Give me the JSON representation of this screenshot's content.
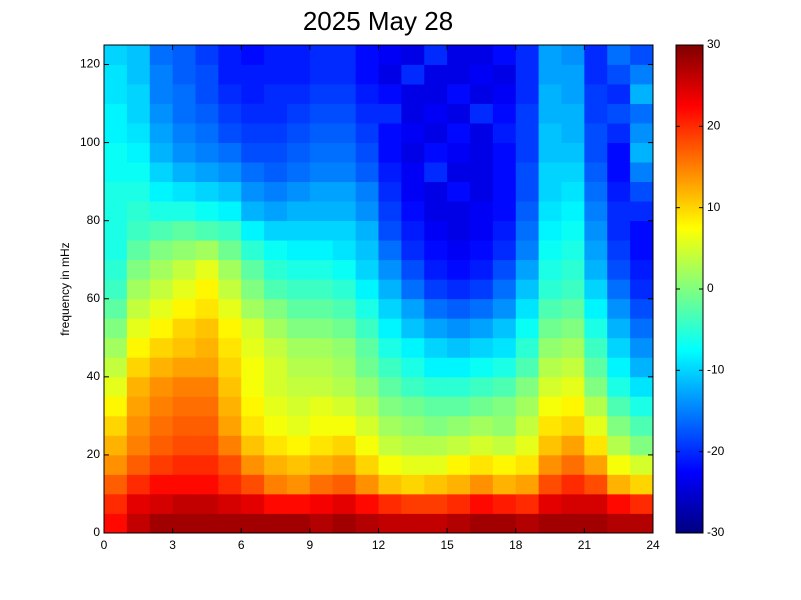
{
  "chart_data": {
    "type": "heatmap",
    "title": "2025 May 28",
    "ylabel": "frequency in mHz",
    "colormap": "jet",
    "xbins": [
      0,
      1,
      2,
      3,
      4,
      5,
      6,
      7,
      8,
      9,
      10,
      11,
      12,
      13,
      14,
      15,
      16,
      17,
      18,
      19,
      20,
      21,
      22,
      23,
      24
    ],
    "ybins": [
      0,
      5,
      10,
      15,
      20,
      25,
      30,
      35,
      40,
      45,
      50,
      55,
      60,
      65,
      70,
      75,
      80,
      85,
      90,
      95,
      100,
      105,
      110,
      115,
      120,
      125
    ],
    "xlim": [
      0,
      24
    ],
    "xticks": [
      0,
      3,
      6,
      9,
      12,
      15,
      18,
      21,
      24
    ],
    "ylim": [
      0,
      125
    ],
    "yticks": [
      0,
      20,
      40,
      60,
      80,
      100,
      120
    ],
    "clim": [
      -30,
      30
    ],
    "cticks": [
      -30,
      -20,
      -10,
      0,
      10,
      20,
      30
    ],
    "z": [
      [
        22,
        26,
        28,
        28,
        28,
        28,
        28,
        28,
        28,
        27,
        28,
        27,
        26,
        26,
        26,
        27,
        28,
        28,
        27,
        28,
        28,
        28,
        27,
        27
      ],
      [
        20,
        24,
        25,
        26,
        26,
        25,
        24,
        22,
        22,
        23,
        24,
        22,
        20,
        19,
        19,
        20,
        22,
        21,
        20,
        24,
        25,
        25,
        22,
        20
      ],
      [
        17,
        20,
        22,
        22,
        22,
        20,
        18,
        15,
        14,
        16,
        17,
        14,
        11,
        10,
        11,
        12,
        14,
        12,
        13,
        18,
        20,
        18,
        12,
        10
      ],
      [
        14,
        17,
        19,
        20,
        20,
        18,
        14,
        12,
        11,
        12,
        13,
        10,
        7,
        6,
        6,
        8,
        9,
        8,
        9,
        14,
        16,
        13,
        7,
        5
      ],
      [
        12,
        15,
        17,
        18,
        18,
        15,
        11,
        9,
        8,
        9,
        10,
        7,
        4,
        3,
        3,
        4,
        5,
        4,
        6,
        11,
        13,
        9,
        3,
        0
      ],
      [
        10,
        14,
        16,
        17,
        17,
        13,
        9,
        7,
        6,
        7,
        7,
        5,
        2,
        1,
        0,
        1,
        2,
        1,
        4,
        9,
        10,
        6,
        0,
        -3
      ],
      [
        8,
        13,
        15,
        16,
        16,
        12,
        8,
        6,
        5,
        6,
        5,
        3,
        0,
        -1,
        -2,
        -2,
        -1,
        0,
        2,
        7,
        8,
        3,
        -3,
        -6
      ],
      [
        6,
        12,
        14,
        15,
        15,
        11,
        7,
        5,
        4,
        4,
        3,
        1,
        -2,
        -4,
        -5,
        -5,
        -4,
        -3,
        0,
        5,
        6,
        0,
        -6,
        -9
      ],
      [
        4,
        10,
        12,
        13,
        13,
        10,
        7,
        5,
        3,
        3,
        2,
        -1,
        -4,
        -6,
        -8,
        -8,
        -7,
        -6,
        -3,
        3,
        4,
        -2,
        -8,
        -12
      ],
      [
        2,
        8,
        10,
        11,
        12,
        9,
        6,
        4,
        2,
        2,
        1,
        -2,
        -6,
        -8,
        -10,
        -11,
        -10,
        -9,
        -5,
        1,
        2,
        -4,
        -10,
        -14
      ],
      [
        0,
        6,
        8,
        10,
        11,
        8,
        5,
        2,
        0,
        0,
        -1,
        -4,
        -8,
        -11,
        -13,
        -14,
        -13,
        -11,
        -7,
        -1,
        0,
        -6,
        -12,
        -16
      ],
      [
        -2,
        4,
        6,
        8,
        9,
        6,
        2,
        0,
        -2,
        -2,
        -3,
        -6,
        -10,
        -13,
        -16,
        -17,
        -16,
        -14,
        -9,
        -3,
        -2,
        -8,
        -14,
        -18
      ],
      [
        -4,
        2,
        4,
        6,
        8,
        4,
        0,
        -3,
        -4,
        -4,
        -5,
        -8,
        -12,
        -16,
        -19,
        -20,
        -19,
        -16,
        -11,
        -5,
        -4,
        -10,
        -16,
        -20
      ],
      [
        -5,
        0,
        2,
        4,
        6,
        2,
        -2,
        -5,
        -6,
        -6,
        -7,
        -10,
        -14,
        -18,
        -21,
        -22,
        -21,
        -18,
        -13,
        -6,
        -5,
        -12,
        -18,
        -21
      ],
      [
        -6,
        -2,
        0,
        1,
        2,
        -1,
        -5,
        -7,
        -8,
        -8,
        -9,
        -11,
        -16,
        -20,
        -22,
        -23,
        -22,
        -20,
        -15,
        -7,
        -6,
        -13,
        -19,
        -22
      ],
      [
        -6,
        -4,
        -3,
        -2,
        -3,
        -4,
        -8,
        -10,
        -10,
        -10,
        -10,
        -12,
        -18,
        -21,
        -23,
        -24,
        -23,
        -21,
        -16,
        -8,
        -7,
        -14,
        -20,
        -22
      ],
      [
        -6,
        -5,
        -6,
        -6,
        -7,
        -8,
        -12,
        -13,
        -12,
        -12,
        -12,
        -14,
        -19,
        -22,
        -24,
        -24,
        -23,
        -22,
        -17,
        -9,
        -8,
        -15,
        -20,
        -20
      ],
      [
        -6,
        -6,
        -8,
        -9,
        -10,
        -11,
        -14,
        -15,
        -14,
        -13,
        -13,
        -15,
        -20,
        -23,
        -24,
        -22,
        -24,
        -22,
        -18,
        -10,
        -9,
        -16,
        -21,
        -18
      ],
      [
        -7,
        -7,
        -10,
        -12,
        -13,
        -14,
        -16,
        -17,
        -16,
        -15,
        -15,
        -17,
        -21,
        -23,
        -20,
        -24,
        -24,
        -22,
        -18,
        -10,
        -10,
        -17,
        -22,
        -15
      ],
      [
        -7,
        -8,
        -12,
        -14,
        -15,
        -16,
        -18,
        -18,
        -17,
        -16,
        -16,
        -18,
        -22,
        -24,
        -22,
        -23,
        -24,
        -22,
        -19,
        -11,
        -11,
        -18,
        -22,
        -12
      ],
      [
        -8,
        -9,
        -13,
        -15,
        -16,
        -18,
        -19,
        -19,
        -18,
        -17,
        -17,
        -19,
        -22,
        -23,
        -24,
        -22,
        -24,
        -21,
        -19,
        -11,
        -12,
        -18,
        -20,
        -14
      ],
      [
        -8,
        -10,
        -14,
        -16,
        -17,
        -19,
        -20,
        -20,
        -19,
        -18,
        -18,
        -20,
        -20,
        -24,
        -23,
        -24,
        -20,
        -22,
        -19,
        -12,
        -12,
        -19,
        -18,
        -16
      ],
      [
        -9,
        -10,
        -15,
        -16,
        -18,
        -20,
        -21,
        -20,
        -20,
        -19,
        -19,
        -21,
        -22,
        -24,
        -24,
        -22,
        -24,
        -23,
        -20,
        -12,
        -13,
        -19,
        -20,
        -12
      ],
      [
        -9,
        -11,
        -15,
        -17,
        -18,
        -21,
        -21,
        -21,
        -21,
        -20,
        -20,
        -22,
        -24,
        -20,
        -24,
        -24,
        -23,
        -24,
        -20,
        -13,
        -13,
        -20,
        -18,
        -15
      ],
      [
        -10,
        -11,
        -16,
        -17,
        -19,
        -21,
        -22,
        -21,
        -21,
        -20,
        -20,
        -22,
        -23,
        -24,
        -20,
        -24,
        -24,
        -22,
        -20,
        -13,
        -14,
        -20,
        -16,
        -18
      ]
    ]
  }
}
